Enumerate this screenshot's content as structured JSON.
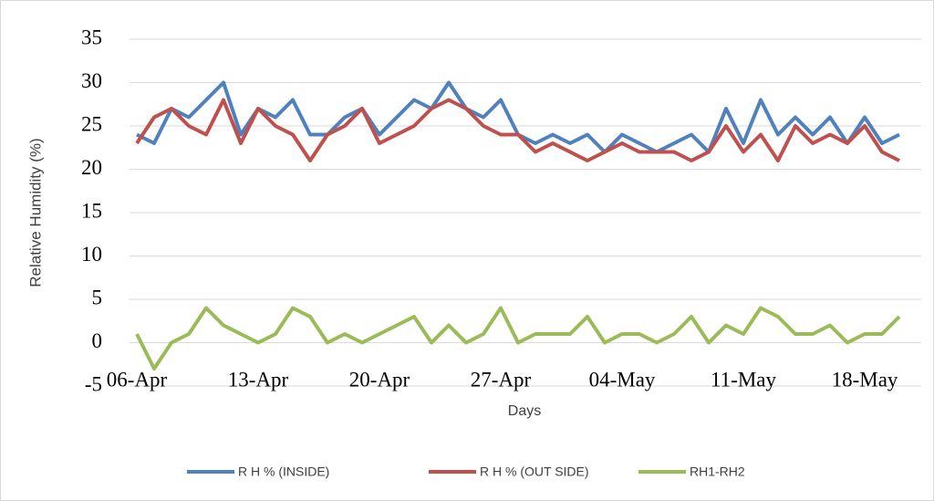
{
  "chart_data": {
    "type": "line",
    "y_label": "Relative Humidity (%)",
    "x_label": "Days",
    "categories": [
      "06-Apr",
      null,
      null,
      null,
      null,
      null,
      null,
      "13-Apr",
      null,
      null,
      null,
      null,
      null,
      null,
      "20-Apr",
      null,
      null,
      null,
      null,
      null,
      null,
      "27-Apr",
      null,
      null,
      null,
      null,
      null,
      null,
      "04-May",
      null,
      null,
      null,
      null,
      null,
      null,
      "11-May",
      null,
      null,
      null,
      null,
      null,
      null,
      "18-May",
      null,
      null
    ],
    "series": [
      {
        "name": "R H % (INSIDE)",
        "color": "#4f81bd",
        "values": [
          24,
          23,
          27,
          26,
          28,
          30,
          24,
          27,
          26,
          28,
          24,
          24,
          26,
          27,
          24,
          26,
          28,
          27,
          30,
          27,
          26,
          28,
          24,
          23,
          24,
          23,
          24,
          22,
          24,
          23,
          22,
          23,
          24,
          22,
          27,
          23,
          28,
          24,
          26,
          24,
          26,
          23,
          26,
          23,
          24
        ]
      },
      {
        "name": "R H % (OUT SIDE)",
        "color": "#c0504d",
        "values": [
          23,
          26,
          27,
          25,
          24,
          28,
          23,
          27,
          25,
          24,
          21,
          24,
          25,
          27,
          23,
          24,
          25,
          27,
          28,
          27,
          25,
          24,
          24,
          22,
          23,
          22,
          21,
          22,
          23,
          22,
          22,
          22,
          21,
          22,
          25,
          22,
          24,
          21,
          25,
          23,
          24,
          23,
          25,
          22,
          21
        ]
      },
      {
        "name": "RH1-RH2",
        "color": "#9bbb59",
        "values": [
          1,
          -3,
          0,
          1,
          4,
          2,
          1,
          0,
          1,
          4,
          3,
          0,
          1,
          0,
          1,
          2,
          3,
          0,
          2,
          0,
          1,
          4,
          0,
          1,
          1,
          1,
          3,
          0,
          1,
          1,
          0,
          1,
          3,
          0,
          2,
          1,
          4,
          3,
          1,
          1,
          2,
          0,
          1,
          1,
          3
        ]
      }
    ],
    "ylim": [
      -5,
      35
    ],
    "yticks": [
      -5,
      0,
      5,
      10,
      15,
      20,
      25,
      30,
      35
    ],
    "grid": true,
    "legend": "bottom"
  }
}
